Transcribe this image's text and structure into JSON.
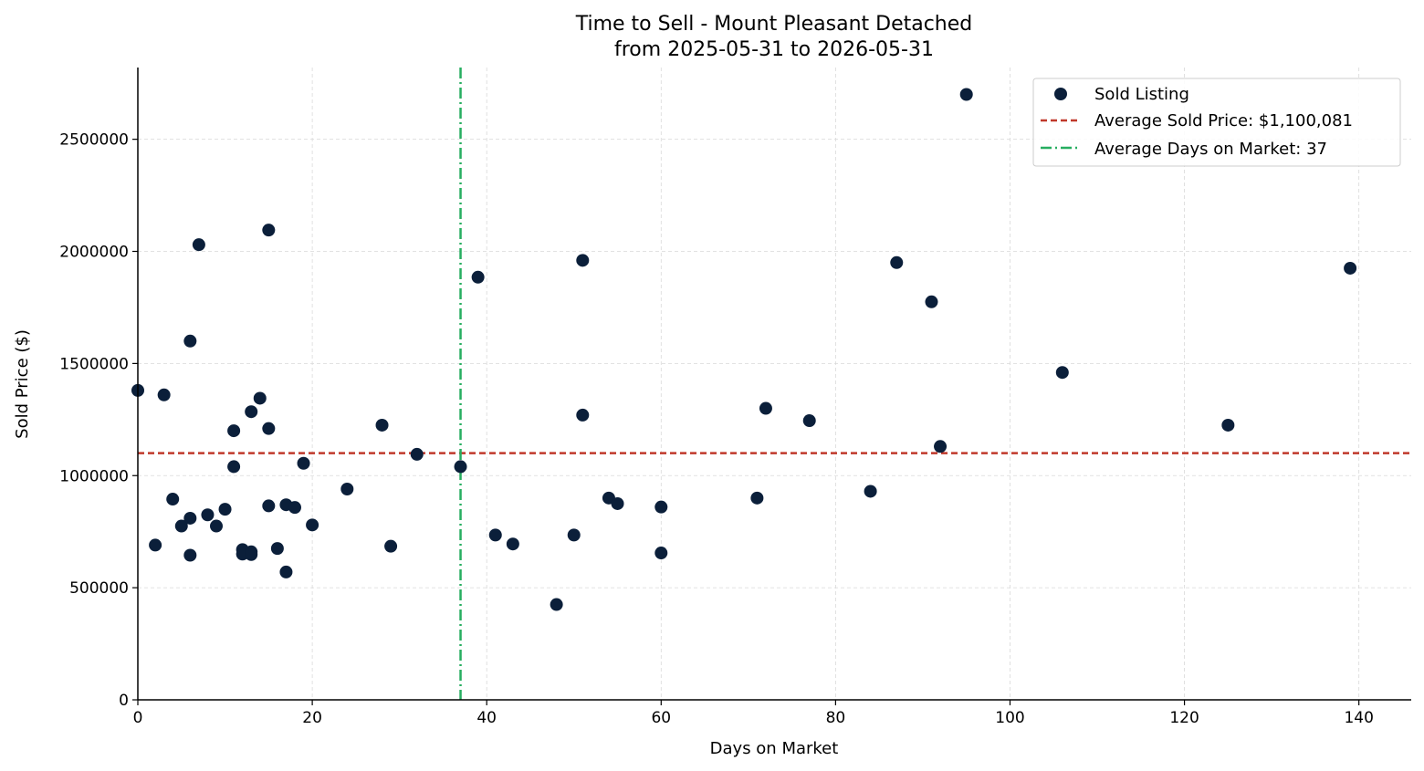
{
  "chart_data": {
    "type": "scatter",
    "title": "Time to Sell - Mount Pleasant Detached",
    "subtitle": "from 2025-05-31 to 2026-05-31",
    "xlabel": "Days on Market",
    "ylabel": "Sold Price ($)",
    "xlim": [
      0,
      146
    ],
    "ylim": [
      0,
      2820000
    ],
    "xticks": [
      0,
      20,
      40,
      60,
      80,
      100,
      120,
      140
    ],
    "yticks": [
      0,
      500000,
      1000000,
      1500000,
      2000000,
      2500000
    ],
    "grid": true,
    "legend_position": "top-right",
    "colors": {
      "points": "#0b1f3a",
      "avg_price_line": "#c0392b",
      "avg_days_line": "#27ae60",
      "grid": "#d9d9d9"
    },
    "series": [
      {
        "name": "Sold Listing",
        "kind": "scatter",
        "points": [
          {
            "x": 0,
            "y": 1380000
          },
          {
            "x": 2,
            "y": 690000
          },
          {
            "x": 3,
            "y": 1360000
          },
          {
            "x": 4,
            "y": 895000
          },
          {
            "x": 5,
            "y": 775000
          },
          {
            "x": 6,
            "y": 1600000
          },
          {
            "x": 6,
            "y": 810000
          },
          {
            "x": 6,
            "y": 645000
          },
          {
            "x": 7,
            "y": 2030000
          },
          {
            "x": 8,
            "y": 825000
          },
          {
            "x": 9,
            "y": 775000
          },
          {
            "x": 10,
            "y": 850000
          },
          {
            "x": 11,
            "y": 1200000
          },
          {
            "x": 11,
            "y": 1040000
          },
          {
            "x": 12,
            "y": 670000
          },
          {
            "x": 12,
            "y": 650000
          },
          {
            "x": 13,
            "y": 1285000
          },
          {
            "x": 13,
            "y": 660000
          },
          {
            "x": 13,
            "y": 648000
          },
          {
            "x": 14,
            "y": 1345000
          },
          {
            "x": 15,
            "y": 2095000
          },
          {
            "x": 15,
            "y": 1210000
          },
          {
            "x": 15,
            "y": 865000
          },
          {
            "x": 16,
            "y": 675000
          },
          {
            "x": 17,
            "y": 870000
          },
          {
            "x": 17,
            "y": 570000
          },
          {
            "x": 18,
            "y": 858000
          },
          {
            "x": 19,
            "y": 1055000
          },
          {
            "x": 20,
            "y": 780000
          },
          {
            "x": 24,
            "y": 940000
          },
          {
            "x": 28,
            "y": 1225000
          },
          {
            "x": 29,
            "y": 685000
          },
          {
            "x": 32,
            "y": 1095000
          },
          {
            "x": 37,
            "y": 1040000
          },
          {
            "x": 39,
            "y": 1885000
          },
          {
            "x": 41,
            "y": 735000
          },
          {
            "x": 43,
            "y": 695000
          },
          {
            "x": 48,
            "y": 425000
          },
          {
            "x": 50,
            "y": 735000
          },
          {
            "x": 51,
            "y": 1960000
          },
          {
            "x": 51,
            "y": 1270000
          },
          {
            "x": 54,
            "y": 900000
          },
          {
            "x": 55,
            "y": 875000
          },
          {
            "x": 60,
            "y": 860000
          },
          {
            "x": 60,
            "y": 655000
          },
          {
            "x": 71,
            "y": 900000
          },
          {
            "x": 72,
            "y": 1300000
          },
          {
            "x": 77,
            "y": 1245000
          },
          {
            "x": 84,
            "y": 930000
          },
          {
            "x": 87,
            "y": 1950000
          },
          {
            "x": 91,
            "y": 1775000
          },
          {
            "x": 92,
            "y": 1130000
          },
          {
            "x": 95,
            "y": 2700000
          },
          {
            "x": 106,
            "y": 1460000
          },
          {
            "x": 125,
            "y": 1225000
          },
          {
            "x": 139,
            "y": 1925000
          }
        ]
      },
      {
        "name": "Average Sold Price: $1,100,081",
        "kind": "hline",
        "y": 1100081
      },
      {
        "name": "Average Days on Market: 37",
        "kind": "vline",
        "x": 37
      }
    ]
  }
}
